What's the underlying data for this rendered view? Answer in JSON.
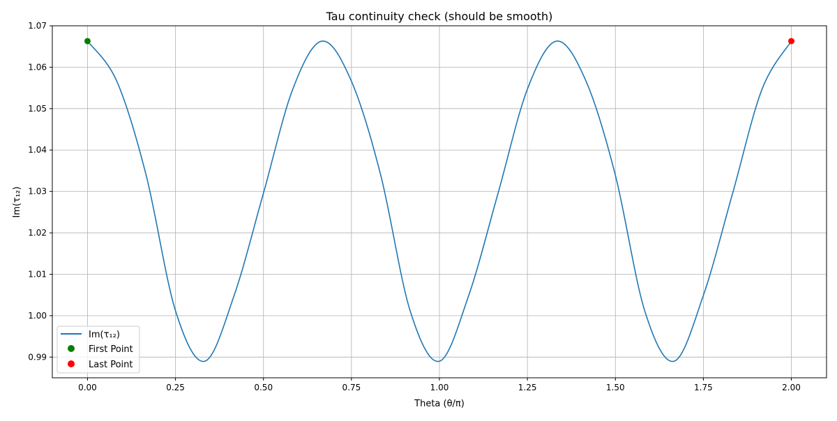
{
  "chart_data": {
    "type": "line",
    "title": "Tau continuity check (should be smooth)",
    "xlabel": "Theta (θ/π)",
    "ylabel": "Im(τ₁₂)",
    "xlim": [
      -0.1,
      2.1
    ],
    "ylim": [
      0.985,
      1.07
    ],
    "x_ticks": [
      0.0,
      0.25,
      0.5,
      0.75,
      1.0,
      1.25,
      1.5,
      1.75,
      2.0
    ],
    "x_tick_labels": [
      "0.00",
      "0.25",
      "0.50",
      "0.75",
      "1.00",
      "1.25",
      "1.50",
      "1.75",
      "2.00"
    ],
    "y_ticks": [
      0.99,
      1.0,
      1.01,
      1.02,
      1.03,
      1.04,
      1.05,
      1.06,
      1.07
    ],
    "y_tick_labels": [
      "0.99",
      "1.00",
      "1.01",
      "1.02",
      "1.03",
      "1.04",
      "1.05",
      "1.06",
      "1.07"
    ],
    "grid": true,
    "legend_position": "lower-left",
    "series": [
      {
        "name": "Im(τ₁₂)",
        "kind": "line",
        "color": "#1f77b4",
        "x": [
          0.0,
          0.0833,
          0.1667,
          0.25,
          0.3333,
          0.4167,
          0.5,
          0.5833,
          0.6667,
          0.75,
          0.8333,
          0.9167,
          1.0,
          1.0833,
          1.1667,
          1.25,
          1.3333,
          1.4167,
          1.5,
          1.5833,
          1.6667,
          1.75,
          1.8333,
          1.9167,
          2.0
        ],
        "y": [
          1.0663,
          1.0566,
          1.0339,
          1.0012,
          0.989,
          1.0049,
          1.0296,
          1.0547,
          1.0663,
          1.0566,
          1.0339,
          1.0012,
          0.989,
          1.0049,
          1.0296,
          1.0547,
          1.0663,
          1.0566,
          1.0339,
          1.0012,
          0.989,
          1.0049,
          1.0296,
          1.0547,
          1.0663
        ]
      },
      {
        "name": "First Point",
        "kind": "scatter",
        "color": "#008000",
        "x": [
          0.0
        ],
        "y": [
          1.0663
        ]
      },
      {
        "name": "Last Point",
        "kind": "scatter",
        "color": "#ff0000",
        "x": [
          2.0
        ],
        "y": [
          1.0663
        ]
      }
    ]
  }
}
